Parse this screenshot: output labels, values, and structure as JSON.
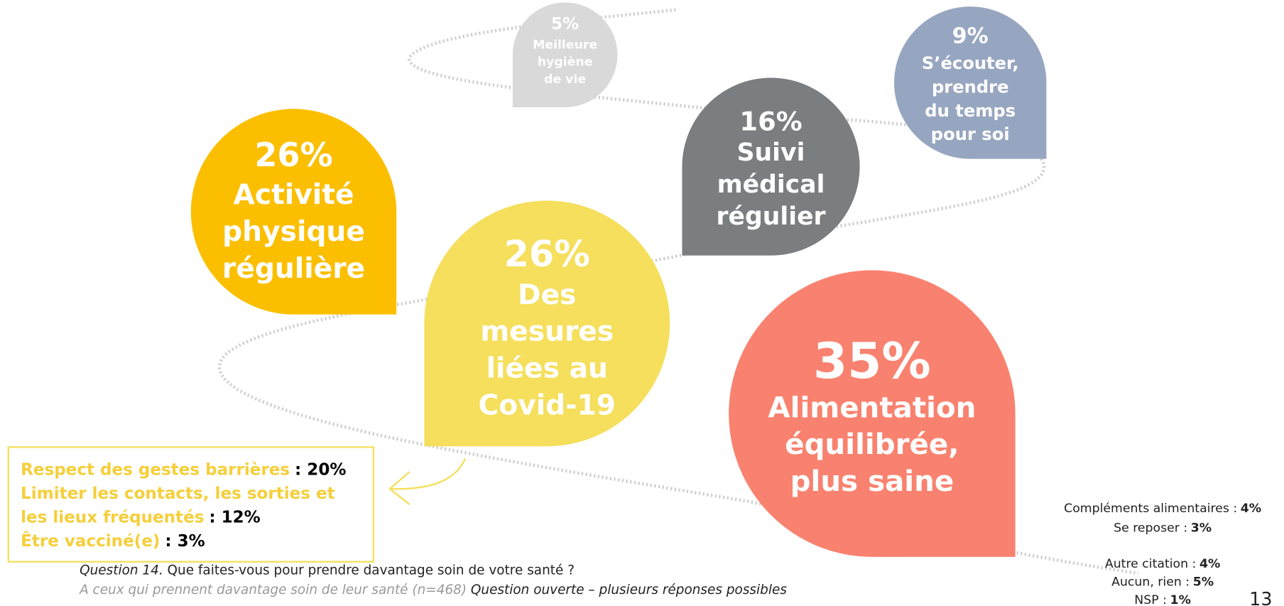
{
  "bubbles": [
    {
      "value": "26%",
      "lines": [
        "Activité",
        "physique",
        "régulière"
      ]
    },
    {
      "value": "26%",
      "lines": [
        "Des",
        "mesures",
        "liées au",
        "Covid-19"
      ]
    },
    {
      "value": "16%",
      "lines": [
        "Suivi",
        "médical",
        "régulier"
      ]
    },
    {
      "value": "9%",
      "lines": [
        "S’écouter,",
        "prendre",
        "du temps",
        "pour soi"
      ]
    },
    {
      "value": "5%",
      "lines": [
        "Meilleure",
        "hygiène",
        "de vie"
      ]
    },
    {
      "value": "35%",
      "lines": [
        "Alimentation",
        "équilibrée,",
        "plus saine"
      ]
    }
  ],
  "detail": [
    {
      "lines": [
        "Respect des gestes barrières"
      ],
      "value": ": 20%"
    },
    {
      "lines": [
        "Limiter les contacts, les sorties et",
        "les lieux fréquentés"
      ],
      "value": ": 12%"
    },
    {
      "lines": [
        "Être vacciné(e)"
      ],
      "value": ": 3%"
    }
  ],
  "others": [
    {
      "label": "Compléments alimentaires :",
      "value": "4%"
    },
    {
      "label": "Se reposer :",
      "value": "3%"
    },
    {
      "label": "Autre citation :",
      "value": "4%"
    },
    {
      "label": "Aucun, rien :",
      "value": "5%"
    },
    {
      "label": "NSP :",
      "value": "1%"
    }
  ],
  "footnote": {
    "question_ref": "Question 14.",
    "question": "Que faites-vous pour prendre davantage soin de votre santé ?",
    "base": "A ceux qui prennent davantage soin de leur santé (n=468)",
    "note": "Question ouverte – plusieurs réponses possibles"
  },
  "page_number": "13"
}
